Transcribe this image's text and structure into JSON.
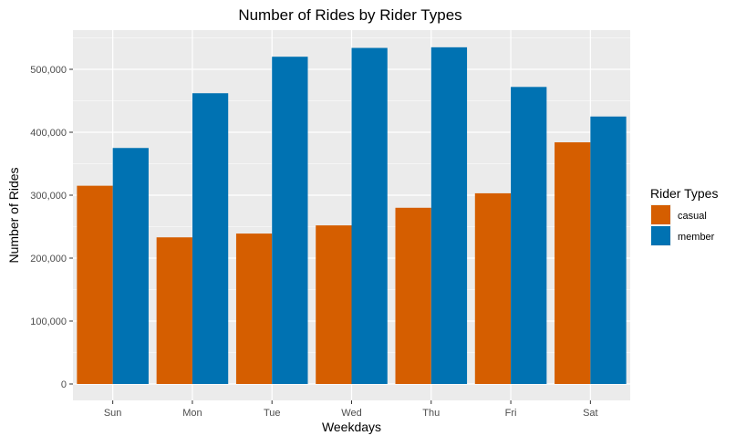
{
  "chart_data": {
    "type": "bar",
    "title": "Number of Rides by Rider Types",
    "xlabel": "Weekdays",
    "ylabel": "Number of Rides",
    "categories": [
      "Sun",
      "Mon",
      "Tue",
      "Wed",
      "Thu",
      "Fri",
      "Sat"
    ],
    "series": [
      {
        "name": "casual",
        "color": "#D55E00",
        "values": [
          315000,
          233000,
          239000,
          252000,
          280000,
          303000,
          384000
        ]
      },
      {
        "name": "member",
        "color": "#0072B2",
        "values": [
          375000,
          462000,
          520000,
          534000,
          535000,
          472000,
          425000
        ]
      }
    ],
    "ylim": [
      0,
      560000
    ],
    "yticks": [
      0,
      100000,
      200000,
      300000,
      400000,
      500000
    ],
    "ytick_labels": [
      "0",
      "100,000",
      "200,000",
      "300,000",
      "400,000",
      "500,000"
    ],
    "legend": {
      "title": "Rider Types",
      "position": "right"
    },
    "grid": true,
    "panel_background": "#EBEBEB",
    "grid_color": "#FFFFFF"
  }
}
